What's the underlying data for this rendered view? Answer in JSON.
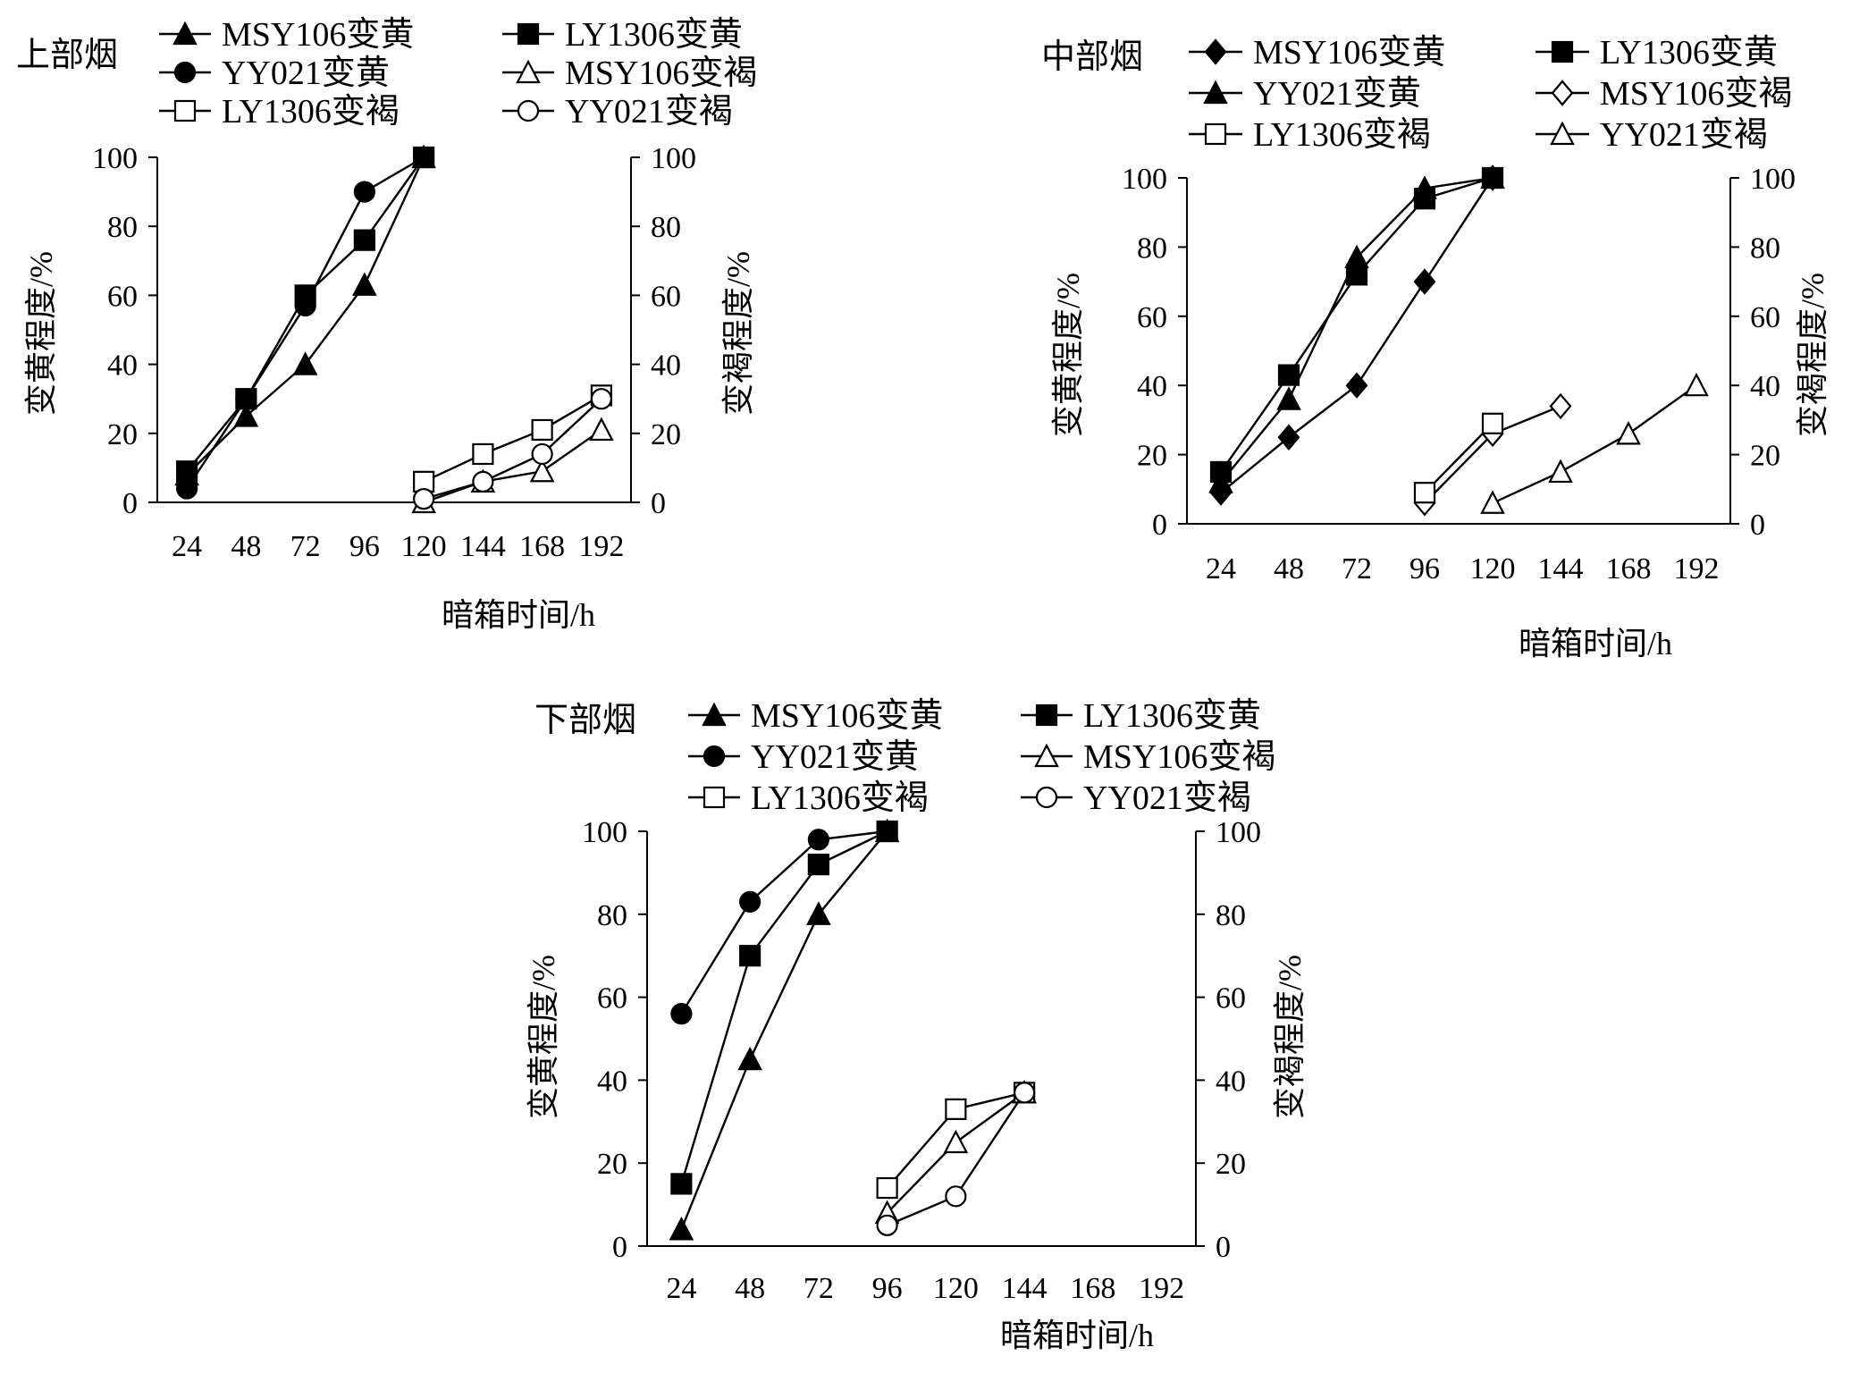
{
  "figure": {
    "x_ticks": [
      "24",
      "48",
      "72",
      "96",
      "120",
      "144",
      "168",
      "192"
    ]
  },
  "chart_data": [
    {
      "type": "line",
      "title": "上部烟",
      "xlabel": "暗箱时间/h",
      "ylabel_left": "变黄程度/%",
      "ylabel_right": "变褐程度/%",
      "x": [
        24,
        48,
        72,
        96,
        120,
        144,
        168,
        192
      ],
      "ylim": [
        0,
        100
      ],
      "y_ticks": [
        "0",
        "20",
        "40",
        "60",
        "80",
        "100"
      ],
      "legend_position": "top",
      "series": [
        {
          "name": "MSY106变黄",
          "marker": "triangle",
          "fill": "filled",
          "x": [
            24,
            48,
            72,
            96,
            120
          ],
          "values": [
            8,
            25,
            40,
            63,
            100
          ]
        },
        {
          "name": "LY1306变黄",
          "marker": "square",
          "fill": "filled",
          "x": [
            24,
            48,
            72,
            96,
            120
          ],
          "values": [
            9,
            30,
            60,
            76,
            100
          ]
        },
        {
          "name": "YY021变黄",
          "marker": "circle",
          "fill": "filled",
          "x": [
            24,
            48,
            72,
            96,
            120
          ],
          "values": [
            4,
            30,
            57,
            90,
            100
          ]
        },
        {
          "name": "MSY106变褐",
          "marker": "triangle",
          "fill": "open",
          "x": [
            120,
            144,
            168,
            192
          ],
          "values": [
            0,
            6,
            9,
            21
          ]
        },
        {
          "name": "LY1306变褐",
          "marker": "square",
          "fill": "open",
          "x": [
            120,
            144,
            168,
            192
          ],
          "values": [
            6,
            14,
            21,
            31
          ]
        },
        {
          "name": "YY021变褐",
          "marker": "circle",
          "fill": "open",
          "x": [
            120,
            144,
            168,
            192
          ],
          "values": [
            1,
            6,
            14,
            30
          ]
        }
      ]
    },
    {
      "type": "line",
      "title": "中部烟",
      "xlabel": "暗箱时间/h",
      "ylabel_left": "变黄程度/%",
      "ylabel_right": "变褐程度/%",
      "x": [
        24,
        48,
        72,
        96,
        120,
        144,
        168,
        192
      ],
      "ylim": [
        0,
        100
      ],
      "y_ticks": [
        "0",
        "20",
        "40",
        "60",
        "80",
        "100"
      ],
      "legend_position": "top",
      "series": [
        {
          "name": "MSY106变黄",
          "marker": "diamond",
          "fill": "filled",
          "x": [
            24,
            48,
            72,
            96,
            120
          ],
          "values": [
            9,
            25,
            40,
            70,
            100
          ]
        },
        {
          "name": "LY1306变黄",
          "marker": "square",
          "fill": "filled",
          "x": [
            24,
            48,
            72,
            96,
            120
          ],
          "values": [
            15,
            43,
            72,
            94,
            100
          ]
        },
        {
          "name": "YY021变黄",
          "marker": "triangle",
          "fill": "filled",
          "x": [
            24,
            48,
            72,
            96,
            120
          ],
          "values": [
            12,
            36,
            77,
            97,
            100
          ]
        },
        {
          "name": "MSY106变褐",
          "marker": "diamond",
          "fill": "open",
          "x": [
            96,
            120,
            144
          ],
          "values": [
            6,
            26,
            34
          ]
        },
        {
          "name": "LY1306变褐",
          "marker": "square",
          "fill": "open",
          "x": [
            96,
            120
          ],
          "values": [
            9,
            29
          ]
        },
        {
          "name": "YY021变褐",
          "marker": "triangle",
          "fill": "open",
          "x": [
            120,
            144,
            168,
            192
          ],
          "values": [
            6,
            15,
            26,
            40
          ]
        }
      ]
    },
    {
      "type": "line",
      "title": "下部烟",
      "xlabel": "暗箱时间/h",
      "ylabel_left": "变黄程度/%",
      "ylabel_right": "变褐程度/%",
      "x": [
        24,
        48,
        72,
        96,
        120,
        144,
        168,
        192
      ],
      "ylim": [
        0,
        100
      ],
      "y_ticks": [
        "0",
        "20",
        "40",
        "60",
        "80",
        "100"
      ],
      "legend_position": "top",
      "series": [
        {
          "name": "MSY106变黄",
          "marker": "triangle",
          "fill": "filled",
          "x": [
            24,
            48,
            72,
            96
          ],
          "values": [
            4,
            45,
            80,
            100
          ]
        },
        {
          "name": "LY1306变黄",
          "marker": "square",
          "fill": "filled",
          "x": [
            24,
            48,
            72,
            96
          ],
          "values": [
            15,
            70,
            92,
            100
          ]
        },
        {
          "name": "YY021变黄",
          "marker": "circle",
          "fill": "filled",
          "x": [
            24,
            48,
            72,
            96
          ],
          "values": [
            56,
            83,
            98,
            100
          ]
        },
        {
          "name": "MSY106变褐",
          "marker": "triangle",
          "fill": "open",
          "x": [
            96,
            120,
            144
          ],
          "values": [
            8,
            25,
            37
          ]
        },
        {
          "name": "LY1306变褐",
          "marker": "square",
          "fill": "open",
          "x": [
            96,
            120,
            144
          ],
          "values": [
            14,
            33,
            37
          ]
        },
        {
          "name": "YY021变褐",
          "marker": "circle",
          "fill": "open",
          "x": [
            96,
            120,
            144
          ],
          "values": [
            5,
            12,
            37
          ]
        }
      ]
    }
  ]
}
